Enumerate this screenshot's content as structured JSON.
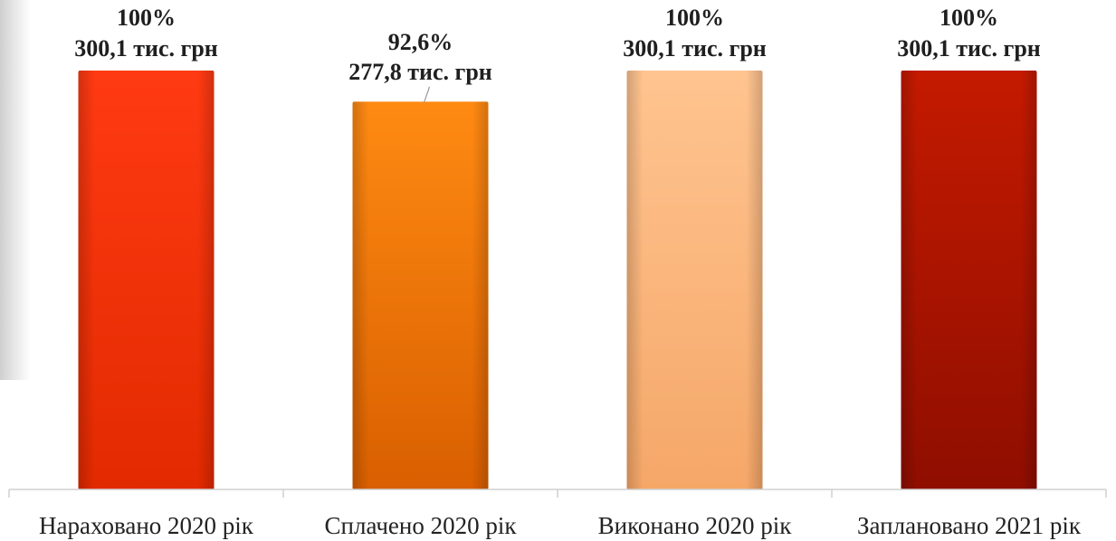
{
  "chart_data": {
    "type": "bar",
    "categories": [
      "Нараховано 2020 рік",
      "Сплачено 2020 рік",
      "Виконано 2020 рік",
      "Заплановано 2021 рік"
    ],
    "values": [
      300.1,
      277.8,
      300.1,
      300.1
    ],
    "percent_labels": [
      "100%",
      "92,6%",
      "100%",
      "100%"
    ],
    "value_labels": [
      "300,1 тис. грн",
      "277,8 тис. грн",
      "300,1 тис. грн",
      "300,1 тис. грн"
    ],
    "colors": [
      {
        "light": "#ff3a12",
        "dark": "#e22a00"
      },
      {
        "light": "#ff8a12",
        "dark": "#d95f00"
      },
      {
        "light": "#ffc490",
        "dark": "#f5a768"
      },
      {
        "light": "#c41a00",
        "dark": "#8f0e00"
      }
    ],
    "title": "",
    "xlabel": "",
    "ylabel": "",
    "ylim": [
      0,
      300.1
    ],
    "grid": false,
    "legend": "none"
  }
}
